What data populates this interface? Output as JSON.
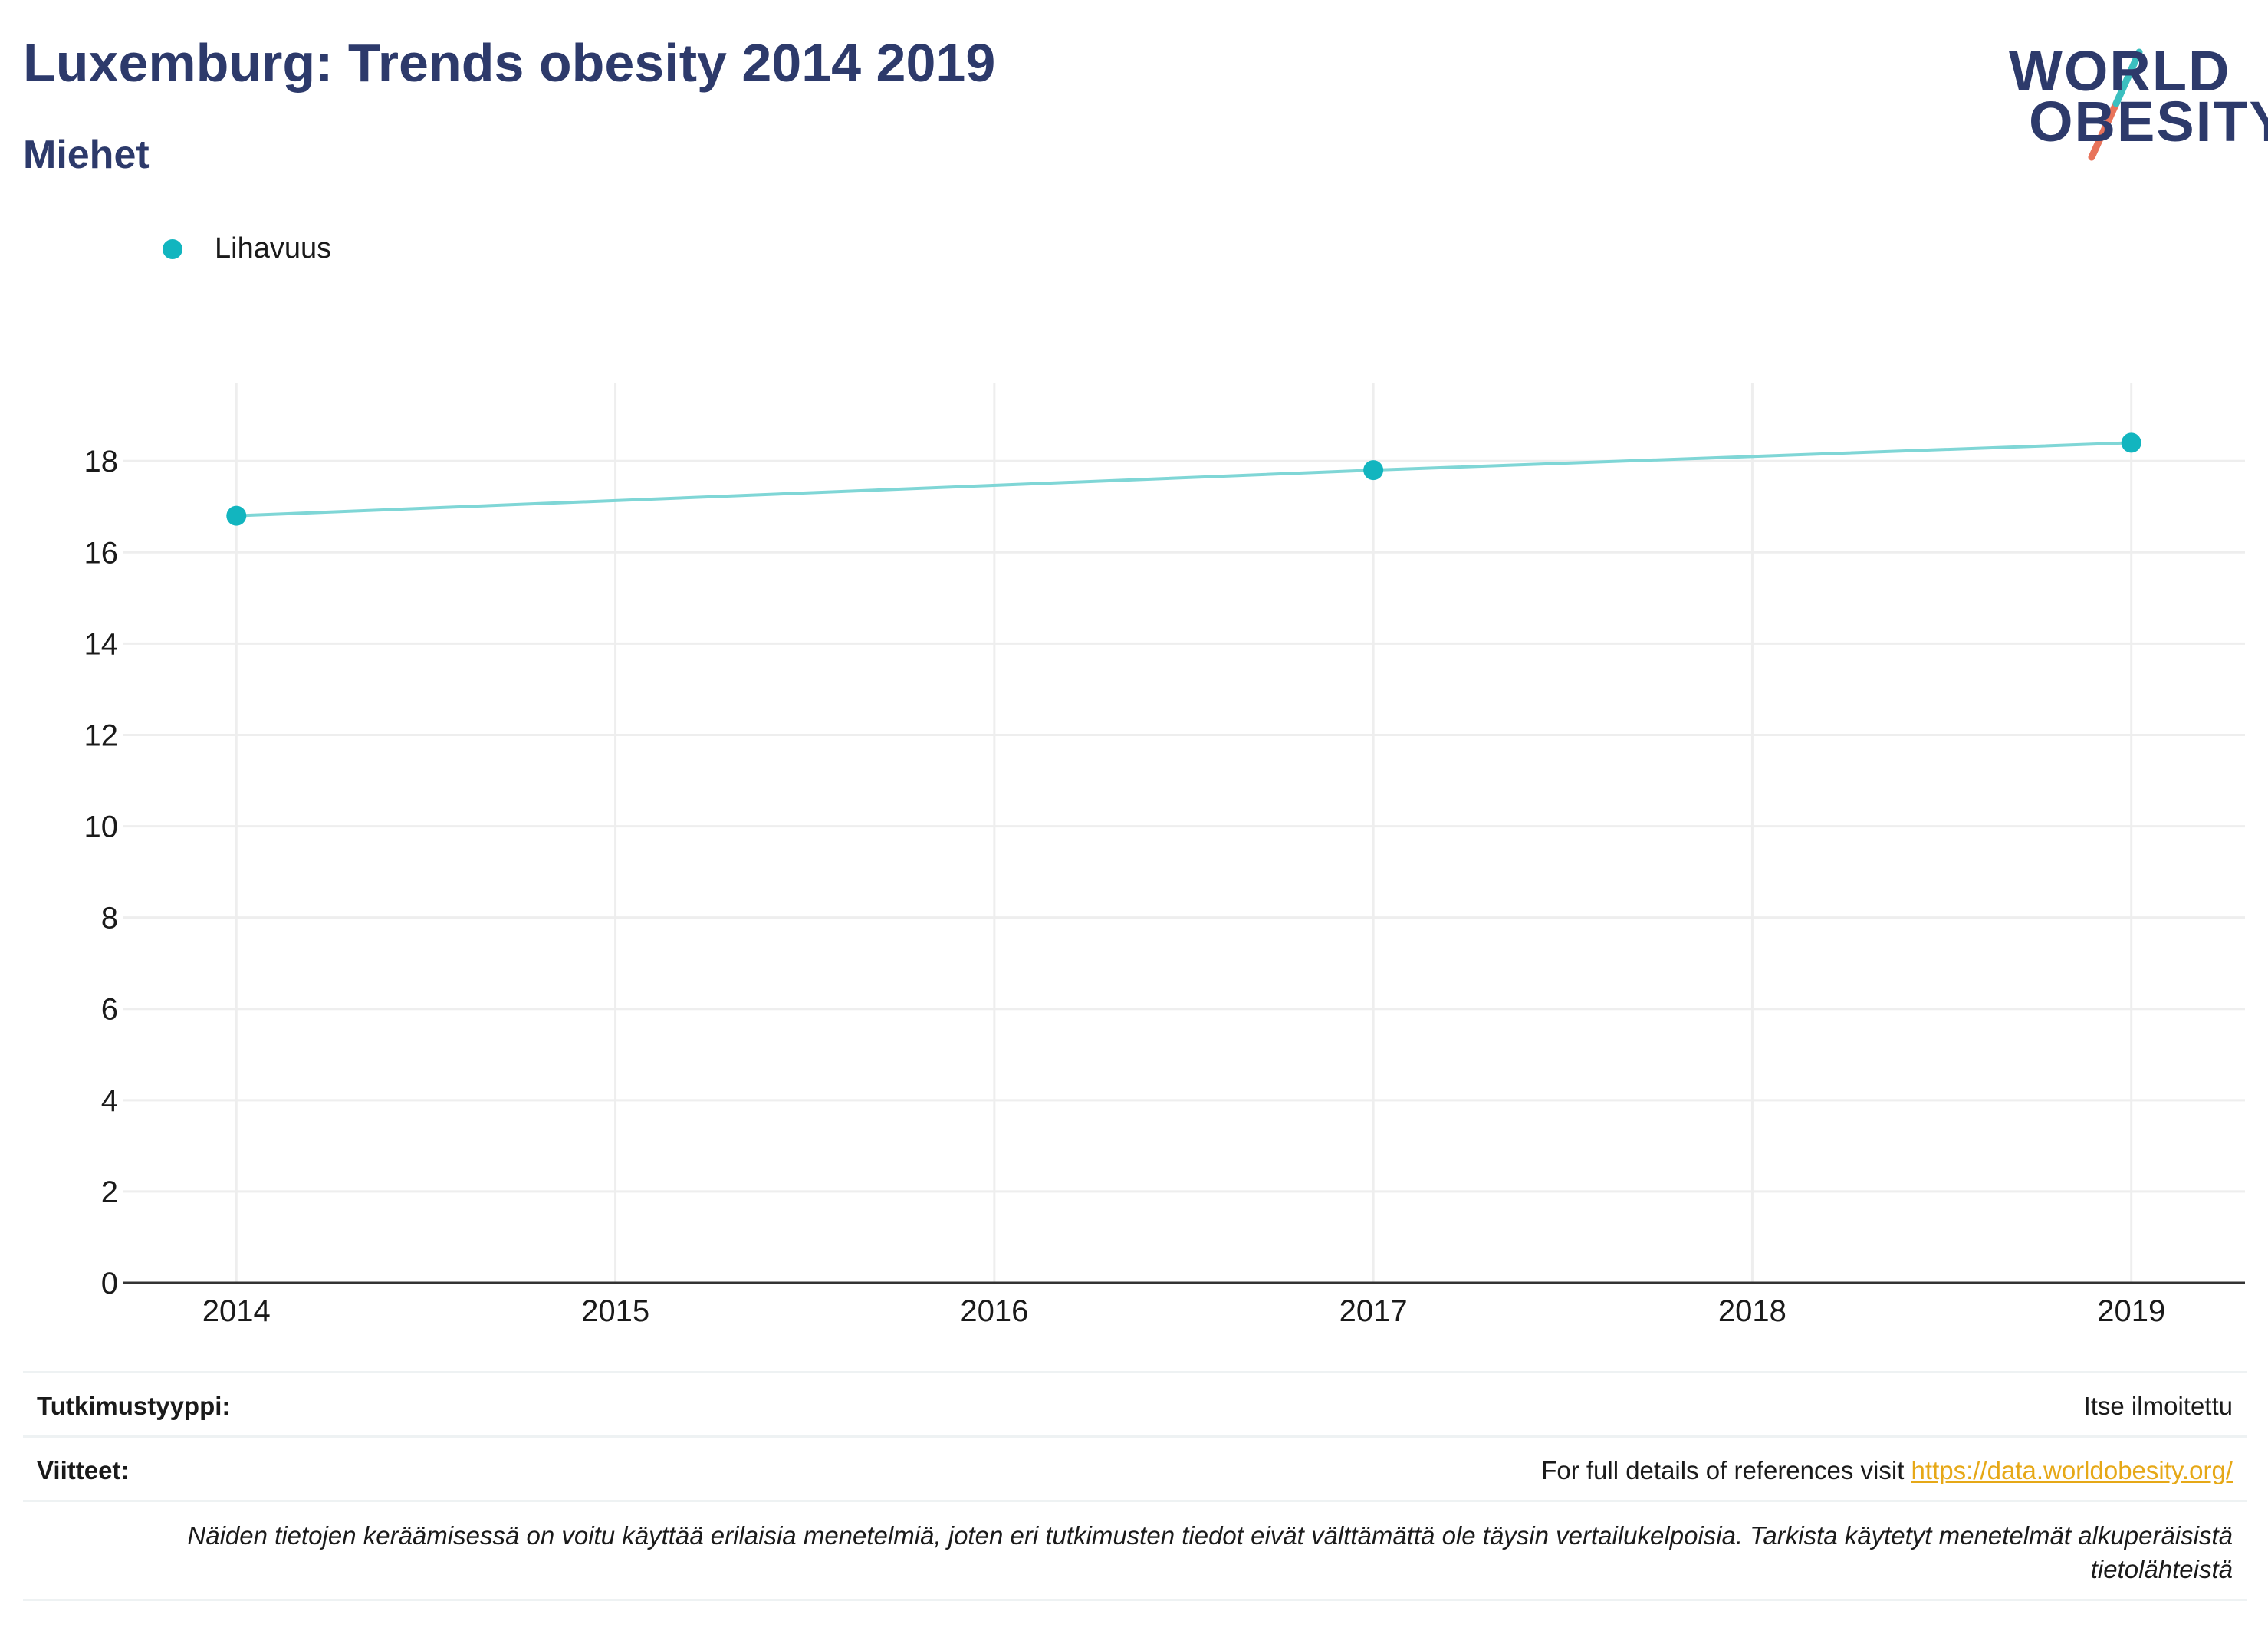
{
  "header": {
    "title": "Luxemburg: Trends obesity 2014 2019",
    "subtitle": "Miehet"
  },
  "logo": {
    "line1": "WORLD",
    "line2": "OBESITY",
    "colors": {
      "text": "#2d3a6b",
      "slash_top": "#3bbfbf",
      "slash_bottom": "#e8735a"
    }
  },
  "colors": {
    "series": "#12b5bf",
    "line": "#7fd6d6",
    "grid": "#eeeeee",
    "axis": "#333333",
    "link": "#e6a817"
  },
  "chart_data": {
    "type": "line",
    "title": "Luxemburg: Trends obesity 2014 2019",
    "subtitle": "Miehet",
    "xlabel": "",
    "ylabel": "",
    "x_ticks": [
      2014,
      2015,
      2016,
      2017,
      2018,
      2019
    ],
    "y_ticks": [
      0,
      2,
      4,
      6,
      8,
      10,
      12,
      14,
      16,
      18
    ],
    "xlim": [
      2013.7,
      2019.3
    ],
    "ylim": [
      0,
      19.7
    ],
    "grid": true,
    "legend_position": "top-left",
    "series": [
      {
        "name": "Lihavuus",
        "color": "#12b5bf",
        "points": [
          {
            "x": 2014,
            "y": 16.8
          },
          {
            "x": 2017,
            "y": 17.8
          },
          {
            "x": 2019,
            "y": 18.4
          }
        ]
      }
    ]
  },
  "footer": {
    "study_type_label": "Tutkimustyyppi:",
    "study_type_value": "Itse ilmoitettu",
    "references_label": "Viitteet:",
    "references_text": "For full details of references visit ",
    "references_link": "https://data.worldobesity.org/",
    "note": "Näiden tietojen keräämisessä on voitu käyttää erilaisia menetelmiä, joten eri tutkimusten tiedot eivät välttämättä ole täysin vertailukelpoisia. Tarkista käytetyt menetelmät alkuperäisistä tietolähteistä"
  }
}
